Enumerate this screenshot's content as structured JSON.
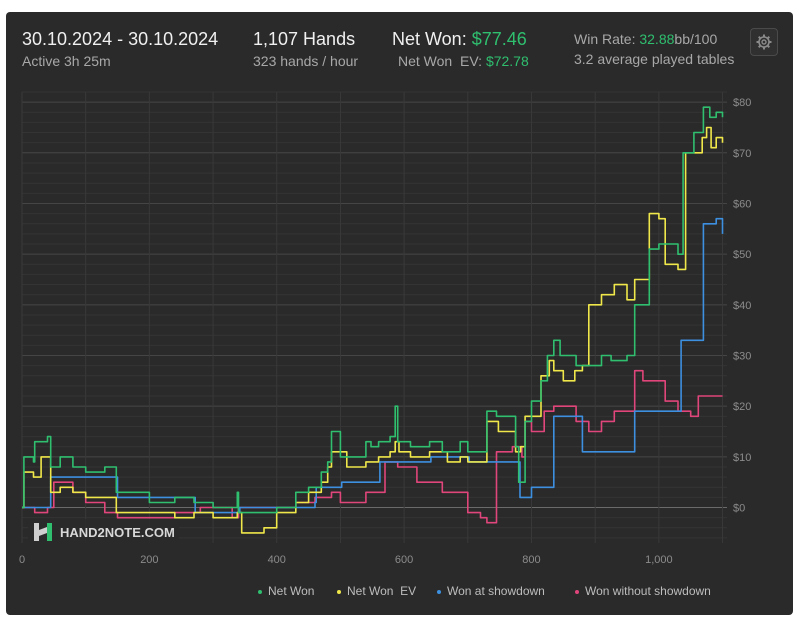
{
  "header": {
    "date_range": "30.10.2024 - 30.10.2024",
    "active": "Active 3h 25m",
    "hands": "1,107 Hands",
    "hands_per_hour": "323 hands / hour",
    "net_won_label": "Net Won:",
    "net_won_value": "$77.46",
    "net_won_ev_label": "Net Won  EV:",
    "net_won_ev_value": "$72.78",
    "win_rate_label": "Win Rate:",
    "win_rate_value": "32.88",
    "win_rate_unit": "bb/100",
    "tables": "3.2 average played tables"
  },
  "logo_text": "HAND2NOTE.COM",
  "colors": {
    "net_won": "#2fbf6f",
    "net_won_ev": "#f0e84a",
    "won_showdown": "#3d8fe0",
    "won_without_showdown": "#e0457b"
  },
  "chart_data": {
    "type": "line",
    "xlim": [
      0,
      1107
    ],
    "ylim": [
      -7,
      82
    ],
    "x_ticks": [
      0,
      200,
      400,
      600,
      800,
      1000
    ],
    "x_tick_labels": [
      "0",
      "200",
      "400",
      "600",
      "800",
      "1,000"
    ],
    "y_ticks": [
      0,
      10,
      20,
      30,
      40,
      50,
      60,
      70,
      80
    ],
    "y_tick_labels": [
      "$0",
      "$10",
      "$20",
      "$30",
      "$40",
      "$50",
      "$60",
      "$70",
      "$80"
    ],
    "grid": true,
    "legend_position": "bottom-right",
    "series": [
      {
        "name": "Net Won",
        "color": "#2fbf6f",
        "points": [
          [
            0,
            0
          ],
          [
            3,
            10
          ],
          [
            18,
            9
          ],
          [
            20,
            13
          ],
          [
            40,
            14
          ],
          [
            45,
            8
          ],
          [
            60,
            10
          ],
          [
            80,
            8
          ],
          [
            100,
            7
          ],
          [
            130,
            8
          ],
          [
            148,
            3
          ],
          [
            170,
            3
          ],
          [
            200,
            1
          ],
          [
            240,
            2
          ],
          [
            270,
            1
          ],
          [
            300,
            0
          ],
          [
            338,
            3
          ],
          [
            340,
            -1
          ],
          [
            380,
            -1
          ],
          [
            400,
            0
          ],
          [
            430,
            3
          ],
          [
            450,
            4
          ],
          [
            470,
            7
          ],
          [
            480,
            9
          ],
          [
            486,
            15
          ],
          [
            500,
            10
          ],
          [
            540,
            13
          ],
          [
            548,
            12
          ],
          [
            560,
            13
          ],
          [
            578,
            14
          ],
          [
            586,
            20
          ],
          [
            590,
            13
          ],
          [
            610,
            12
          ],
          [
            640,
            13
          ],
          [
            660,
            11
          ],
          [
            688,
            13
          ],
          [
            700,
            11
          ],
          [
            730,
            19
          ],
          [
            745,
            18
          ],
          [
            775,
            12
          ],
          [
            780,
            5
          ],
          [
            790,
            17
          ],
          [
            800,
            21
          ],
          [
            815,
            25
          ],
          [
            825,
            30
          ],
          [
            835,
            33
          ],
          [
            845,
            30
          ],
          [
            870,
            28
          ],
          [
            890,
            28
          ],
          [
            910,
            30
          ],
          [
            925,
            29
          ],
          [
            950,
            30
          ],
          [
            962,
            40
          ],
          [
            985,
            51
          ],
          [
            1000,
            52
          ],
          [
            1030,
            50
          ],
          [
            1038,
            70
          ],
          [
            1055,
            74
          ],
          [
            1070,
            79
          ],
          [
            1080,
            77
          ],
          [
            1090,
            78
          ],
          [
            1100,
            77
          ]
        ]
      },
      {
        "name": "Net Won  EV",
        "color": "#f0e84a",
        "points": [
          [
            0,
            0
          ],
          [
            3,
            7
          ],
          [
            18,
            6
          ],
          [
            30,
            10
          ],
          [
            45,
            3
          ],
          [
            60,
            4
          ],
          [
            80,
            3
          ],
          [
            100,
            2
          ],
          [
            148,
            -1
          ],
          [
            170,
            -1
          ],
          [
            200,
            -1
          ],
          [
            240,
            -2
          ],
          [
            270,
            -1
          ],
          [
            300,
            -2
          ],
          [
            338,
            -1
          ],
          [
            345,
            -5
          ],
          [
            380,
            -4
          ],
          [
            400,
            -1
          ],
          [
            430,
            1
          ],
          [
            450,
            3
          ],
          [
            470,
            5
          ],
          [
            480,
            8
          ],
          [
            486,
            11
          ],
          [
            510,
            8
          ],
          [
            540,
            9
          ],
          [
            560,
            10
          ],
          [
            578,
            11
          ],
          [
            586,
            13
          ],
          [
            592,
            11
          ],
          [
            610,
            10
          ],
          [
            640,
            11
          ],
          [
            668,
            9
          ],
          [
            688,
            10
          ],
          [
            700,
            9
          ],
          [
            730,
            17
          ],
          [
            748,
            15
          ],
          [
            775,
            11
          ],
          [
            783,
            12
          ],
          [
            790,
            18
          ],
          [
            800,
            18
          ],
          [
            808,
            18
          ],
          [
            815,
            26
          ],
          [
            828,
            29
          ],
          [
            835,
            27
          ],
          [
            850,
            25
          ],
          [
            868,
            27
          ],
          [
            880,
            28
          ],
          [
            890,
            40
          ],
          [
            910,
            42
          ],
          [
            930,
            44
          ],
          [
            950,
            41
          ],
          [
            962,
            45
          ],
          [
            985,
            58
          ],
          [
            1000,
            57
          ],
          [
            1010,
            48
          ],
          [
            1030,
            47
          ],
          [
            1042,
            70
          ],
          [
            1055,
            70
          ],
          [
            1068,
            73
          ],
          [
            1075,
            75
          ],
          [
            1082,
            71
          ],
          [
            1090,
            73
          ],
          [
            1100,
            72
          ]
        ]
      },
      {
        "name": "Won at showdown",
        "color": "#3d8fe0",
        "points": [
          [
            0,
            0
          ],
          [
            40,
            0
          ],
          [
            45,
            6
          ],
          [
            100,
            6
          ],
          [
            148,
            6
          ],
          [
            150,
            2
          ],
          [
            220,
            2
          ],
          [
            270,
            2
          ],
          [
            272,
            -1
          ],
          [
            340,
            -1
          ],
          [
            342,
            0
          ],
          [
            400,
            0
          ],
          [
            460,
            1
          ],
          [
            462,
            4
          ],
          [
            500,
            4
          ],
          [
            502,
            5
          ],
          [
            560,
            5
          ],
          [
            562,
            9
          ],
          [
            640,
            9
          ],
          [
            642,
            10
          ],
          [
            700,
            10
          ],
          [
            702,
            9
          ],
          [
            780,
            9
          ],
          [
            782,
            2
          ],
          [
            798,
            2
          ],
          [
            800,
            4
          ],
          [
            832,
            4
          ],
          [
            835,
            18
          ],
          [
            880,
            11
          ],
          [
            930,
            11
          ],
          [
            962,
            19
          ],
          [
            1000,
            19
          ],
          [
            1032,
            19
          ],
          [
            1035,
            33
          ],
          [
            1068,
            33
          ],
          [
            1070,
            56
          ],
          [
            1090,
            57
          ],
          [
            1100,
            54
          ]
        ]
      },
      {
        "name": "Won without showdown",
        "color": "#e0457b",
        "points": [
          [
            0,
            0
          ],
          [
            20,
            -1
          ],
          [
            40,
            0
          ],
          [
            50,
            5
          ],
          [
            80,
            3
          ],
          [
            100,
            1
          ],
          [
            130,
            -1
          ],
          [
            150,
            -2
          ],
          [
            200,
            -2
          ],
          [
            240,
            -1
          ],
          [
            280,
            0
          ],
          [
            330,
            -2
          ],
          [
            340,
            0
          ],
          [
            380,
            0
          ],
          [
            400,
            0
          ],
          [
            430,
            1
          ],
          [
            460,
            2
          ],
          [
            486,
            3
          ],
          [
            500,
            1
          ],
          [
            540,
            3
          ],
          [
            560,
            3
          ],
          [
            570,
            9
          ],
          [
            590,
            8
          ],
          [
            620,
            5
          ],
          [
            660,
            3
          ],
          [
            700,
            -1
          ],
          [
            720,
            -2
          ],
          [
            730,
            -3
          ],
          [
            745,
            11
          ],
          [
            770,
            12
          ],
          [
            785,
            10
          ],
          [
            790,
            17
          ],
          [
            800,
            15
          ],
          [
            820,
            19
          ],
          [
            835,
            20
          ],
          [
            870,
            17
          ],
          [
            890,
            15
          ],
          [
            910,
            17
          ],
          [
            930,
            19
          ],
          [
            945,
            19
          ],
          [
            962,
            27
          ],
          [
            975,
            25
          ],
          [
            990,
            25
          ],
          [
            1010,
            21
          ],
          [
            1030,
            19
          ],
          [
            1050,
            18
          ],
          [
            1062,
            22
          ],
          [
            1080,
            22
          ],
          [
            1100,
            22
          ]
        ]
      }
    ]
  }
}
